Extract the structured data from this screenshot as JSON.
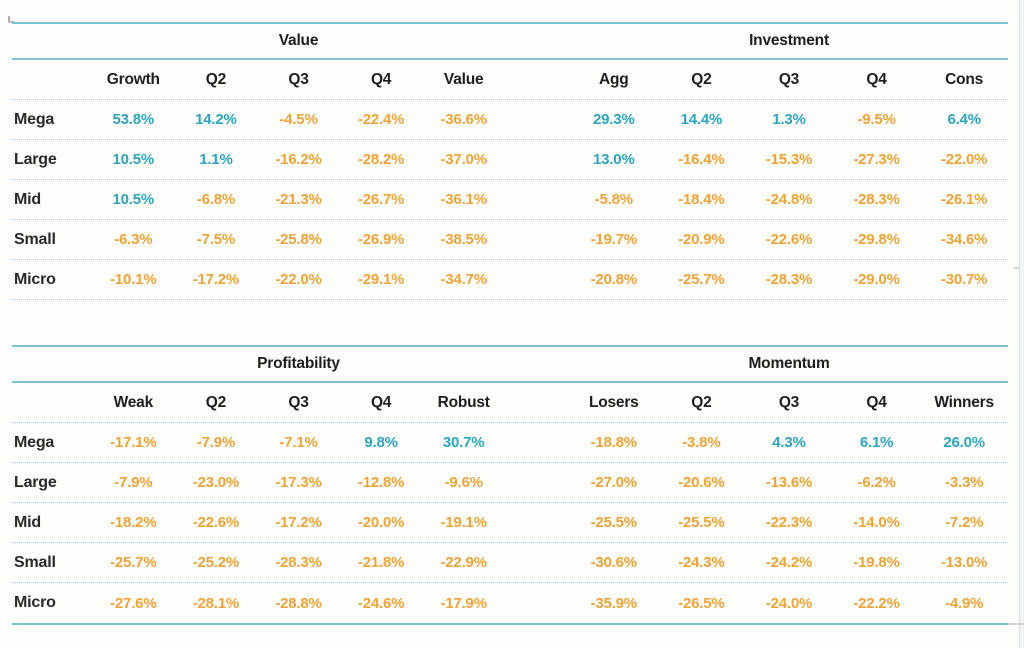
{
  "colors": {
    "positive_text": "#2aa6bd",
    "negative_text": "#f0a437",
    "rule_solid": "#7cc4d2",
    "rule_dotted": "#a5d6de",
    "header_text": "#1e1e1e"
  },
  "tables": [
    {
      "group_left": "Value",
      "group_right": "Investment",
      "headers_left": [
        "Growth",
        "Q2",
        "Q3",
        "Q4",
        "Value"
      ],
      "headers_right": [
        "Agg",
        "Q2",
        "Q3",
        "Q4",
        "Cons"
      ],
      "bottom_border": "dotted",
      "rows": [
        {
          "label": "Mega",
          "left": [
            "53.8%",
            "14.2%",
            "-4.5%",
            "-22.4%",
            "-36.6%"
          ],
          "right": [
            "29.3%",
            "14.4%",
            "1.3%",
            "-9.5%",
            "6.4%"
          ]
        },
        {
          "label": "Large",
          "left": [
            "10.5%",
            "1.1%",
            "-16.2%",
            "-28.2%",
            "-37.0%"
          ],
          "right": [
            "13.0%",
            "-16.4%",
            "-15.3%",
            "-27.3%",
            "-22.0%"
          ]
        },
        {
          "label": "Mid",
          "left": [
            "10.5%",
            "-6.8%",
            "-21.3%",
            "-26.7%",
            "-36.1%"
          ],
          "right": [
            "-5.8%",
            "-18.4%",
            "-24.8%",
            "-28.3%",
            "-26.1%"
          ]
        },
        {
          "label": "Small",
          "left": [
            "-6.3%",
            "-7.5%",
            "-25.8%",
            "-26.9%",
            "-38.5%"
          ],
          "right": [
            "-19.7%",
            "-20.9%",
            "-22.6%",
            "-29.8%",
            "-34.6%"
          ]
        },
        {
          "label": "Micro",
          "left": [
            "-10.1%",
            "-17.2%",
            "-22.0%",
            "-29.1%",
            "-34.7%"
          ],
          "right": [
            "-20.8%",
            "-25.7%",
            "-28.3%",
            "-29.0%",
            "-30.7%"
          ]
        }
      ]
    },
    {
      "group_left": "Profitability",
      "group_right": "Momentum",
      "headers_left": [
        "Weak",
        "Q2",
        "Q3",
        "Q4",
        "Robust"
      ],
      "headers_right": [
        "Losers",
        "Q2",
        "Q3",
        "Q4",
        "Winners"
      ],
      "bottom_border": "solid",
      "rows": [
        {
          "label": "Mega",
          "left": [
            "-17.1%",
            "-7.9%",
            "-7.1%",
            "9.8%",
            "30.7%"
          ],
          "right": [
            "-18.8%",
            "-3.8%",
            "4.3%",
            "6.1%",
            "26.0%"
          ]
        },
        {
          "label": "Large",
          "left": [
            "-7.9%",
            "-23.0%",
            "-17.3%",
            "-12.8%",
            "-9.6%"
          ],
          "right": [
            "-27.0%",
            "-20.6%",
            "-13.6%",
            "-6.2%",
            "-3.3%"
          ]
        },
        {
          "label": "Mid",
          "left": [
            "-18.2%",
            "-22.6%",
            "-17.2%",
            "-20.0%",
            "-19.1%"
          ],
          "right": [
            "-25.5%",
            "-25.5%",
            "-22.3%",
            "-14.0%",
            "-7.2%"
          ]
        },
        {
          "label": "Small",
          "left": [
            "-25.7%",
            "-25.2%",
            "-28.3%",
            "-21.8%",
            "-22.9%"
          ],
          "right": [
            "-30.6%",
            "-24.3%",
            "-24.2%",
            "-19.8%",
            "-13.0%"
          ]
        },
        {
          "label": "Micro",
          "left": [
            "-27.6%",
            "-28.1%",
            "-28.8%",
            "-24.6%",
            "-17.9%"
          ],
          "right": [
            "-35.9%",
            "-26.5%",
            "-24.0%",
            "-22.2%",
            "-4.9%"
          ]
        }
      ]
    }
  ],
  "chart_data": [
    {
      "type": "table",
      "title": "Value / Investment factor quintile returns",
      "groups": [
        "Value",
        "Investment"
      ],
      "columns": [
        "Growth",
        "Q2",
        "Q3",
        "Q4",
        "Value",
        "Agg",
        "Q2",
        "Q3",
        "Q4",
        "Cons"
      ],
      "rows": [
        "Mega",
        "Large",
        "Mid",
        "Small",
        "Micro"
      ],
      "values_pct": [
        [
          53.8,
          14.2,
          -4.5,
          -22.4,
          -36.6,
          29.3,
          14.4,
          1.3,
          -9.5,
          6.4
        ],
        [
          10.5,
          1.1,
          -16.2,
          -28.2,
          -37.0,
          13.0,
          -16.4,
          -15.3,
          -27.3,
          -22.0
        ],
        [
          10.5,
          -6.8,
          -21.3,
          -26.7,
          -36.1,
          -5.8,
          -18.4,
          -24.8,
          -28.3,
          -26.1
        ],
        [
          -6.3,
          -7.5,
          -25.8,
          -26.9,
          -38.5,
          -19.7,
          -20.9,
          -22.6,
          -29.8,
          -34.6
        ],
        [
          -10.1,
          -17.2,
          -22.0,
          -29.1,
          -34.7,
          -20.8,
          -25.7,
          -28.3,
          -29.0,
          -30.7
        ]
      ],
      "color_rule": "positive values teal (#2aa6bd), negative values orange (#f0a437)"
    },
    {
      "type": "table",
      "title": "Profitability / Momentum factor quintile returns",
      "groups": [
        "Profitability",
        "Momentum"
      ],
      "columns": [
        "Weak",
        "Q2",
        "Q3",
        "Q4",
        "Robust",
        "Losers",
        "Q2",
        "Q3",
        "Q4",
        "Winners"
      ],
      "rows": [
        "Mega",
        "Large",
        "Mid",
        "Small",
        "Micro"
      ],
      "values_pct": [
        [
          -17.1,
          -7.9,
          -7.1,
          9.8,
          30.7,
          -18.8,
          -3.8,
          4.3,
          6.1,
          26.0
        ],
        [
          -7.9,
          -23.0,
          -17.3,
          -12.8,
          -9.6,
          -27.0,
          -20.6,
          -13.6,
          -6.2,
          -3.3
        ],
        [
          -18.2,
          -22.6,
          -17.2,
          -20.0,
          -19.1,
          -25.5,
          -25.5,
          -22.3,
          -14.0,
          -7.2
        ],
        [
          -25.7,
          -25.2,
          -28.3,
          -21.8,
          -22.9,
          -30.6,
          -24.3,
          -24.2,
          -19.8,
          -13.0
        ],
        [
          -27.6,
          -28.1,
          -28.8,
          -24.6,
          -17.9,
          -35.9,
          -26.5,
          -24.0,
          -22.2,
          -4.9
        ]
      ],
      "color_rule": "positive values teal (#2aa6bd), negative values orange (#f0a437)"
    }
  ]
}
